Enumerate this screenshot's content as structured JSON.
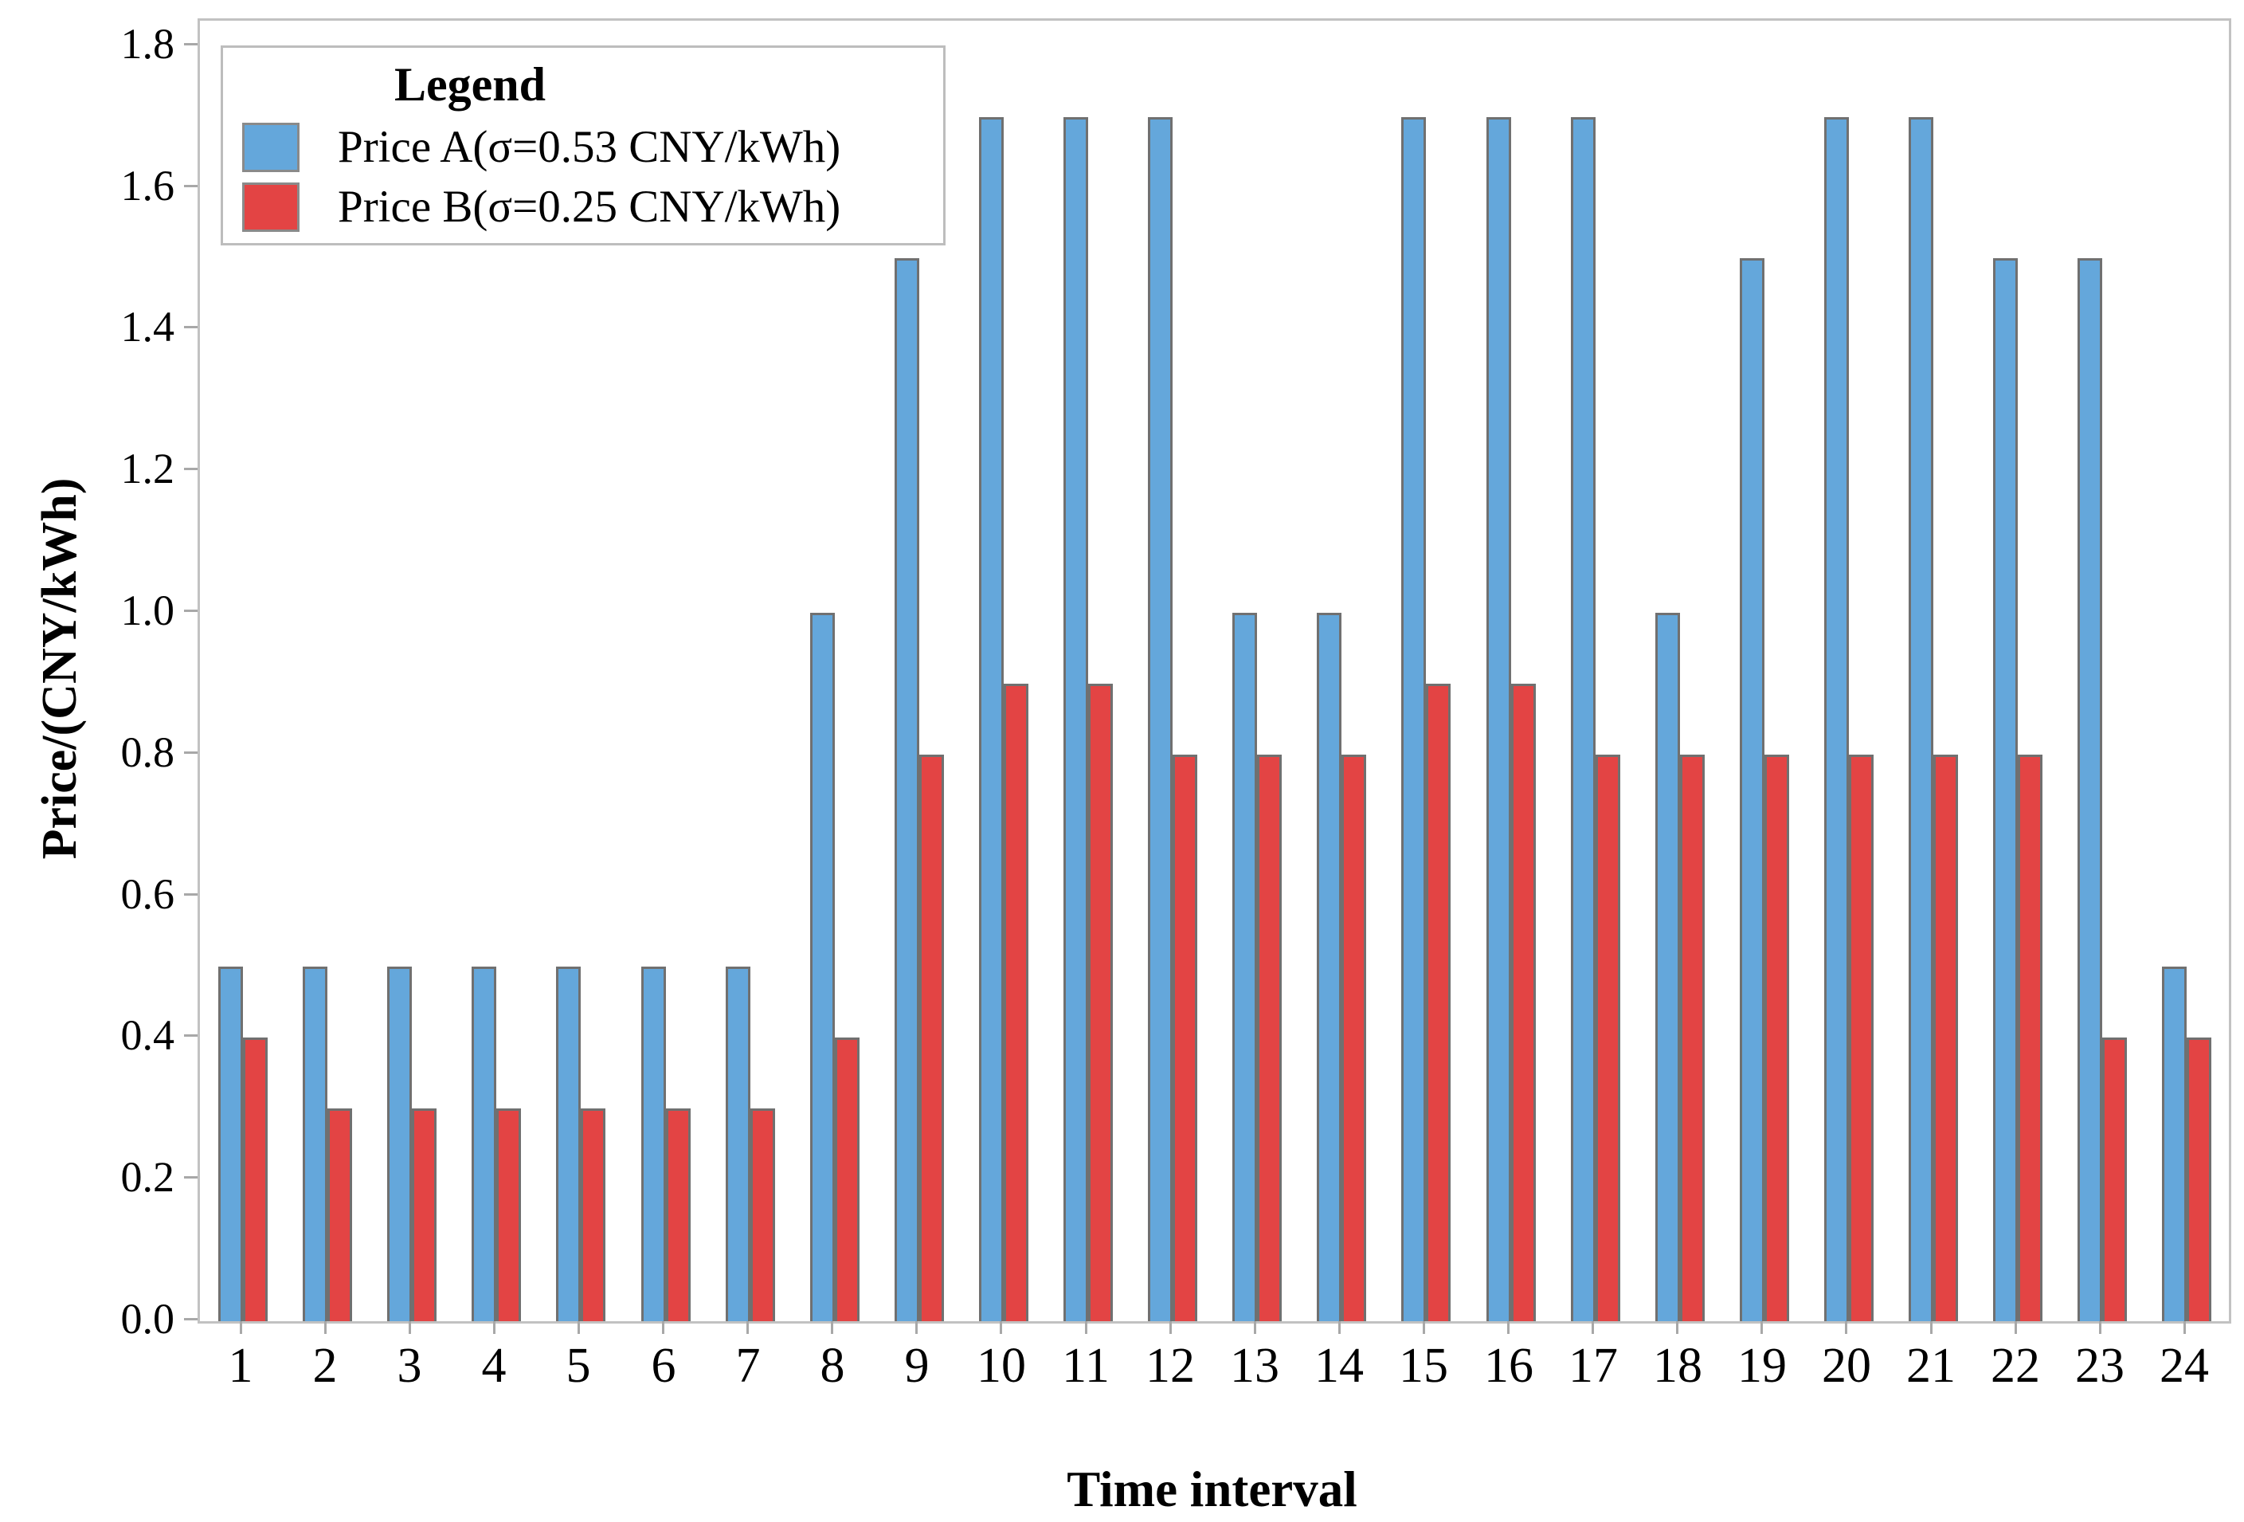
{
  "chart_data": {
    "type": "bar",
    "title": "",
    "xlabel": "Time interval",
    "ylabel": "Price/(CNY/kWh)",
    "categories": [
      "1",
      "2",
      "3",
      "4",
      "5",
      "6",
      "7",
      "8",
      "9",
      "10",
      "11",
      "12",
      "13",
      "14",
      "15",
      "16",
      "17",
      "18",
      "19",
      "20",
      "21",
      "22",
      "23",
      "24"
    ],
    "series": [
      {
        "name": "Price A(σ=0.53 CNY/kWh)",
        "color": "#64a7db",
        "values": [
          0.5,
          0.5,
          0.5,
          0.5,
          0.5,
          0.5,
          0.5,
          1.0,
          1.5,
          1.7,
          1.7,
          1.7,
          1.0,
          1.0,
          1.7,
          1.7,
          1.7,
          1.0,
          1.5,
          1.7,
          1.7,
          1.5,
          1.5,
          0.5
        ]
      },
      {
        "name": "Price B(σ=0.25 CNY/kWh)",
        "color": "#e34444",
        "values": [
          0.4,
          0.3,
          0.3,
          0.3,
          0.3,
          0.3,
          0.3,
          0.4,
          0.8,
          0.9,
          0.9,
          0.8,
          0.8,
          0.8,
          0.9,
          0.9,
          0.8,
          0.8,
          0.8,
          0.8,
          0.8,
          0.8,
          0.4,
          0.4
        ]
      }
    ],
    "ylim": [
      0,
      1.8
    ],
    "yticks": [
      "0.0",
      "0.2",
      "0.4",
      "0.6",
      "0.8",
      "1.0",
      "1.2",
      "1.4",
      "1.6",
      "1.8"
    ],
    "grid": false,
    "legend_title": "Legend",
    "legend_position": "upper-left",
    "bar_edge_color": "#707070",
    "spine_color": "#c2c2c2",
    "tick_color": "#a8a8a8"
  }
}
